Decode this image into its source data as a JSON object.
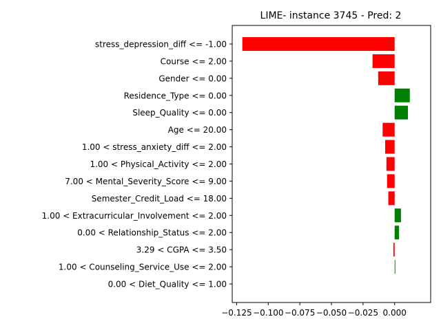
{
  "chart_data": {
    "type": "bar",
    "orientation": "horizontal",
    "title": "LIME- instance 3745 - Pred: 2",
    "xlabel": "",
    "ylabel": "",
    "xlim": [
      -0.1285,
      0.0285
    ],
    "grid": false,
    "colors": {
      "positive": "#008000",
      "negative": "#ff0000"
    },
    "categories": [
      "stress_depression_diff <= -1.00",
      "Course <= 2.00",
      "Gender <= 0.00",
      "Residence_Type <= 0.00",
      "Sleep_Quality <= 0.00",
      "Age <= 20.00",
      "1.00 < stress_anxiety_diff <= 2.00",
      "1.00 < Physical_Activity <= 2.00",
      "7.00 < Mental_Severity_Score <= 9.00",
      "Semester_Credit_Load <= 18.00",
      "1.00 < Extracurricular_Involvement <= 2.00",
      "0.00 < Relationship_Status <= 2.00",
      "3.29 < CGPA <= 3.50",
      "1.00 < Counseling_Service_Use <= 2.00",
      "0.00 < Diet_Quality <= 1.00"
    ],
    "values": [
      -0.1205,
      -0.0175,
      -0.013,
      0.012,
      0.0105,
      -0.0095,
      -0.0075,
      -0.0065,
      -0.006,
      -0.005,
      0.005,
      0.0035,
      -0.001,
      0.0005,
      0.0
    ],
    "xticks": [
      -0.125,
      -0.1,
      -0.075,
      -0.05,
      -0.025,
      0.0
    ],
    "xtick_labels": [
      "−0.125",
      "−0.100",
      "−0.075",
      "−0.050",
      "−0.025",
      "0.000"
    ]
  }
}
